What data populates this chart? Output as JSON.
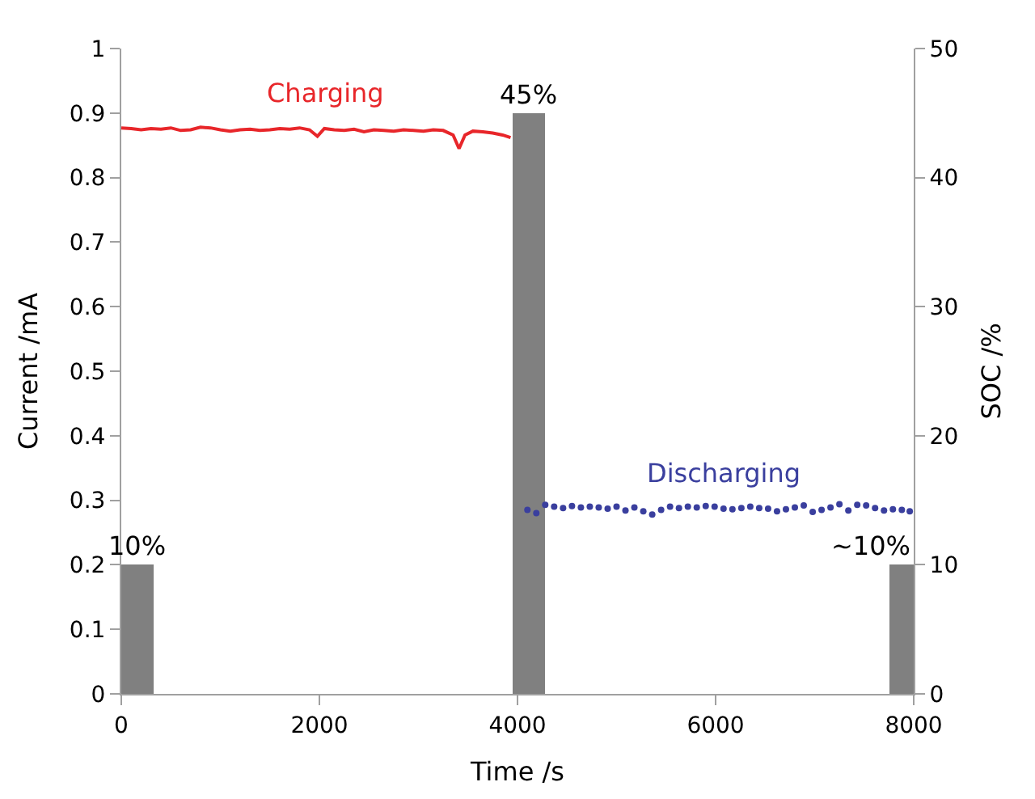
{
  "chart_data": {
    "type": "line",
    "xlabel": "Time /s",
    "ylabel": "Current /mA",
    "y2label": "SOC /%",
    "xlim": [
      0,
      8000
    ],
    "xticks": [
      0,
      2000,
      4000,
      6000,
      8000
    ],
    "ylim": [
      0,
      1
    ],
    "yticks": [
      0,
      0.1,
      0.2,
      0.3,
      0.4,
      0.5,
      0.6,
      0.7,
      0.8,
      0.9,
      1
    ],
    "y2lim": [
      0,
      50
    ],
    "y2ticks": [
      0,
      10,
      20,
      30,
      40,
      50
    ],
    "legend": false,
    "series": [
      {
        "type": "bar",
        "axis": "y2",
        "color": "#808080",
        "x": [
          165,
          4115,
          7920
        ],
        "values": [
          10,
          45,
          10
        ],
        "value_labels": [
          "10%",
          "45%",
          "~10%"
        ]
      },
      {
        "name": "Charging",
        "color": "#e8262a",
        "marker": "none",
        "line_style": "solid",
        "x": [
          0,
          100,
          200,
          300,
          400,
          500,
          600,
          700,
          800,
          900,
          1000,
          1100,
          1200,
          1300,
          1400,
          1500,
          1600,
          1700,
          1800,
          1900,
          1980,
          2050,
          2150,
          2250,
          2350,
          2450,
          2550,
          2650,
          2750,
          2850,
          2950,
          3050,
          3150,
          3250,
          3350,
          3410,
          3470,
          3550,
          3650,
          3750,
          3850,
          3930
        ],
        "values": [
          0.877,
          0.876,
          0.874,
          0.876,
          0.875,
          0.877,
          0.873,
          0.874,
          0.878,
          0.877,
          0.874,
          0.872,
          0.874,
          0.875,
          0.873,
          0.874,
          0.876,
          0.875,
          0.877,
          0.874,
          0.864,
          0.876,
          0.874,
          0.873,
          0.875,
          0.871,
          0.874,
          0.873,
          0.872,
          0.874,
          0.873,
          0.872,
          0.874,
          0.873,
          0.866,
          0.845,
          0.866,
          0.872,
          0.871,
          0.869,
          0.866,
          0.862
        ]
      },
      {
        "type": "scatter",
        "name": "Discharging",
        "color": "#3a3f9e",
        "marker": "circle",
        "x": [
          4100,
          4190,
          4280,
          4370,
          4460,
          4550,
          4640,
          4730,
          4820,
          4910,
          5000,
          5090,
          5180,
          5270,
          5360,
          5450,
          5540,
          5630,
          5720,
          5810,
          5900,
          5990,
          6080,
          6170,
          6260,
          6350,
          6440,
          6530,
          6620,
          6710,
          6800,
          6890,
          6980,
          7070,
          7160,
          7250,
          7340,
          7430,
          7520,
          7610,
          7700,
          7790,
          7880,
          7960
        ],
        "values": [
          0.285,
          0.28,
          0.293,
          0.29,
          0.288,
          0.291,
          0.289,
          0.29,
          0.289,
          0.287,
          0.29,
          0.284,
          0.289,
          0.283,
          0.278,
          0.285,
          0.29,
          0.288,
          0.29,
          0.289,
          0.291,
          0.29,
          0.287,
          0.286,
          0.288,
          0.29,
          0.288,
          0.287,
          0.283,
          0.286,
          0.289,
          0.292,
          0.282,
          0.285,
          0.289,
          0.294,
          0.284,
          0.293,
          0.292,
          0.288,
          0.284,
          0.286,
          0.285,
          0.283
        ]
      }
    ]
  }
}
